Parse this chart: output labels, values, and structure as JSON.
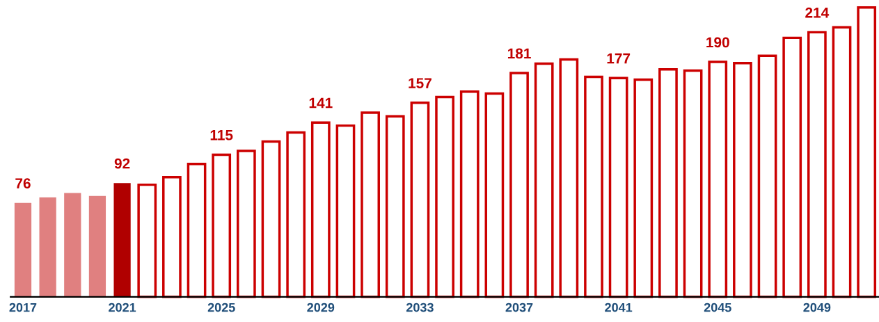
{
  "chart_data": {
    "type": "bar",
    "categories": [
      "2017",
      null,
      null,
      null,
      "2021",
      null,
      null,
      null,
      "2025",
      null,
      null,
      null,
      "2029",
      null,
      null,
      null,
      "2033",
      null,
      null,
      null,
      "2037",
      null,
      null,
      null,
      "2041",
      null,
      null,
      null,
      "2045",
      null,
      null,
      null,
      "2049",
      null,
      null
    ],
    "series": [
      {
        "color": "#e08080",
        "values": [
          76,
          80.5,
          84,
          81.6,
          null,
          null,
          null,
          null,
          null,
          null,
          null,
          null,
          null,
          null,
          null,
          null,
          null,
          null,
          null,
          null,
          null,
          null,
          null,
          null,
          null,
          null,
          null,
          null,
          null,
          null,
          null,
          null,
          null,
          null,
          null
        ],
        "value_labels": [
          "76",
          null,
          null,
          null,
          null,
          null,
          null,
          null,
          null,
          null,
          null,
          null,
          null,
          null,
          null,
          null,
          null,
          null,
          null,
          null,
          null,
          null,
          null,
          null,
          null,
          null,
          null,
          null,
          null,
          null,
          null,
          null,
          null,
          null,
          null
        ]
      },
      {
        "color": "#b00000",
        "values": [
          null,
          null,
          null,
          null,
          92,
          null,
          null,
          null,
          null,
          null,
          null,
          null,
          null,
          null,
          null,
          null,
          null,
          null,
          null,
          null,
          null,
          null,
          null,
          null,
          null,
          null,
          null,
          null,
          null,
          null,
          null,
          null,
          null,
          null,
          null
        ],
        "value_labels": [
          null,
          null,
          null,
          null,
          "92",
          null,
          null,
          null,
          null,
          null,
          null,
          null,
          null,
          null,
          null,
          null,
          null,
          null,
          null,
          null,
          null,
          null,
          null,
          null,
          null,
          null,
          null,
          null,
          null,
          null,
          null,
          null,
          null,
          null,
          null
        ]
      },
      {
        "color": "#cc0000",
        "values": [
          null,
          null,
          null,
          null,
          null,
          90.7,
          96.8,
          107.5,
          115,
          118,
          125.6,
          133,
          141,
          138.5,
          149,
          146,
          157,
          161.6,
          166,
          164.4,
          181,
          188.6,
          192,
          178,
          177,
          175.7,
          184,
          183,
          190,
          189,
          195,
          209.5,
          214,
          218,
          234
        ],
        "value_labels": [
          null,
          null,
          null,
          null,
          null,
          null,
          null,
          null,
          "115",
          null,
          null,
          null,
          "141",
          null,
          null,
          null,
          "157",
          null,
          null,
          null,
          "181",
          null,
          null,
          null,
          "177",
          null,
          null,
          null,
          "190",
          null,
          null,
          null,
          "214",
          null,
          null
        ]
      }
    ]
  }
}
